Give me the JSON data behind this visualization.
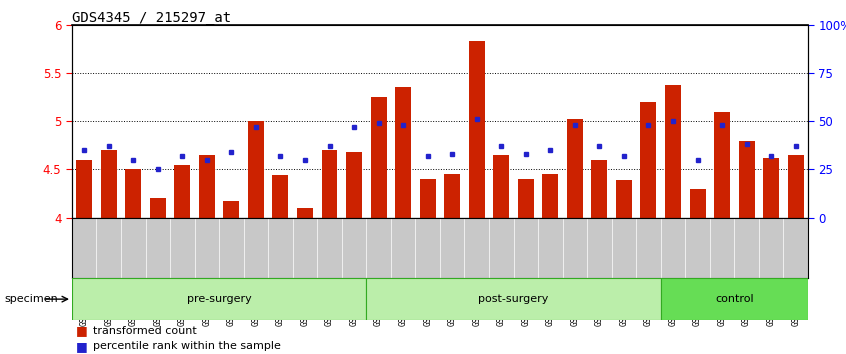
{
  "title": "GDS4345 / 215297_at",
  "samples": [
    "GSM842012",
    "GSM842013",
    "GSM842014",
    "GSM842015",
    "GSM842016",
    "GSM842017",
    "GSM842018",
    "GSM842019",
    "GSM842020",
    "GSM842021",
    "GSM842022",
    "GSM842023",
    "GSM842024",
    "GSM842025",
    "GSM842026",
    "GSM842027",
    "GSM842028",
    "GSM842029",
    "GSM842030",
    "GSM842031",
    "GSM842032",
    "GSM842033",
    "GSM842034",
    "GSM842035",
    "GSM842036",
    "GSM842037",
    "GSM842038",
    "GSM842039",
    "GSM842040",
    "GSM842041"
  ],
  "bar_values": [
    4.6,
    4.7,
    4.5,
    4.2,
    4.55,
    4.65,
    4.17,
    5.0,
    4.44,
    4.1,
    4.7,
    4.68,
    5.25,
    5.35,
    4.4,
    4.45,
    5.83,
    4.65,
    4.4,
    4.45,
    5.02,
    4.6,
    4.39,
    5.2,
    5.38,
    4.3,
    5.1,
    4.8,
    4.62,
    4.65
  ],
  "percentile_values": [
    35,
    37,
    30,
    25,
    32,
    30,
    34,
    47,
    32,
    30,
    37,
    47,
    49,
    48,
    32,
    33,
    51,
    37,
    33,
    35,
    48,
    37,
    32,
    48,
    50,
    30,
    48,
    38,
    32,
    37
  ],
  "ymin": 4.0,
  "ymax": 6.0,
  "yticks": [
    4.0,
    4.5,
    5.0,
    5.5,
    6.0
  ],
  "ytick_labels": [
    "4",
    "4.5",
    "5",
    "5.5",
    "6"
  ],
  "y2ticks": [
    0,
    25,
    50,
    75,
    100
  ],
  "y2tick_labels": [
    "0",
    "25",
    "50",
    "75",
    "100%"
  ],
  "bar_color": "#cc2200",
  "dot_color": "#2222cc",
  "tick_bg_color": "#c8c8c8",
  "group_light_color": "#bbeeaa",
  "group_dark_color": "#66dd55",
  "group_border_color": "#33aa22",
  "groups": [
    {
      "label": "pre-surgery",
      "start": 0,
      "end": 11,
      "dark": false
    },
    {
      "label": "post-surgery",
      "start": 12,
      "end": 23,
      "dark": false
    },
    {
      "label": "control",
      "start": 24,
      "end": 29,
      "dark": true
    }
  ]
}
